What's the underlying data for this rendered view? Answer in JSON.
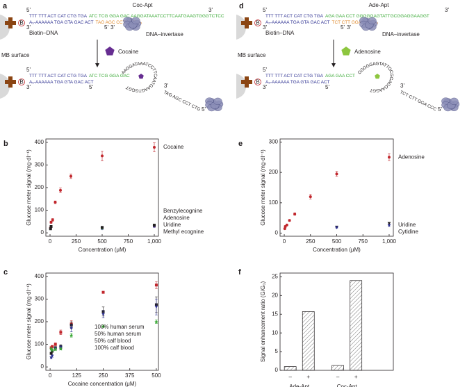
{
  "panel_a": {
    "label": "a",
    "aptamer": "Coc-Apt",
    "top": [
      "TTT TTT ACT CAT CTG TGA",
      "ATC TCG GGA GAC AAGGATAAATCCTTCAATGAAGTGGGTCTCC"
    ],
    "bottom": [
      "A₅-AAAAAA TGA GTA GAC ACT",
      "TAG AGC CCT CTG-A₅"
    ],
    "biotin_mark": "B",
    "biotin": "Biotin–DNA",
    "enzyme": "DNA–invertase",
    "surface": "MB surface",
    "target": "Cocaine",
    "target_color": "#662d91",
    "after_top": "ATC TCG GGA GAC",
    "loop": "AAGGATAAATCCTTCAATGAAGTGGGTCTCC",
    "released": "TAG AGC CCT CTG-A₅",
    "ends": [
      "5'",
      "3'",
      "3'",
      "5'",
      "3'",
      "5'",
      "3'",
      "5'",
      "3'",
      "5'"
    ]
  },
  "panel_d": {
    "label": "d",
    "aptamer": "Ade-Apt",
    "top": [
      "TTT TTT ACT CAT CTG TGA",
      "AGA GAA CCT GGGGGAGTATTGCGGAGGAAGGT"
    ],
    "bottom": [
      "A₅-AAAAAA TGA GTA GAC ACT",
      "TCT CTT GGA CCC-A₅"
    ],
    "biotin_mark": "B",
    "biotin": "Biotin–DNA",
    "enzyme": "DNA–invertase",
    "surface": "MB surface",
    "target": "Adenosine",
    "target_color": "#8dc63f",
    "after_top": "AGA GAA CCT",
    "loop": "GGGGGAGTATTGCGGAGGAAGGT",
    "released": "TCT CTT GGA CCC-A₅",
    "ends": [
      "5'",
      "3'",
      "3'",
      "5'",
      "3'",
      "5'",
      "3'",
      "5'",
      "3'",
      "5'"
    ]
  },
  "chart_data": [
    {
      "type": "scatter",
      "label": "b",
      "xlabel": "Concentration (μM)",
      "ylabel": "Glucose meter signal (mg·dl⁻¹)",
      "xlim": [
        -40,
        1040
      ],
      "xticks": [
        0,
        250,
        500,
        750,
        {
          "value": 1000,
          "label": "1,000"
        }
      ],
      "ylim": [
        -15,
        415
      ],
      "yticks": [
        0,
        100,
        200,
        300,
        400
      ],
      "series": [
        {
          "name": "Cocaine",
          "color": "#c1272d",
          "marker": "circle",
          "x": [
            5,
            10,
            25,
            50,
            100,
            200,
            500,
            1000
          ],
          "values": [
            22,
            47,
            57,
            135,
            188,
            250,
            340,
            378
          ],
          "errors": [
            4,
            5,
            6,
            6,
            10,
            10,
            22,
            20
          ]
        },
        {
          "name": "Benzylecognine",
          "color": "#93278f",
          "marker": "square",
          "x": [
            500,
            1000
          ],
          "values": [
            22,
            30
          ],
          "errors": [
            3,
            3
          ]
        },
        {
          "name": "Adenosine",
          "color": "#2e3192",
          "marker": "triangle",
          "x": [
            500,
            1000
          ],
          "values": [
            18,
            28
          ],
          "errors": [
            3,
            3
          ]
        },
        {
          "name": "Uridine",
          "color": "#39a935",
          "marker": "triangle",
          "x": [
            500,
            1000
          ],
          "values": [
            20,
            32
          ],
          "errors": [
            3,
            3
          ]
        },
        {
          "name": "Methyl ecognine",
          "color": "#231f20",
          "marker": "square",
          "x": [
            5,
            10,
            500,
            1000
          ],
          "values": [
            18,
            28,
            24,
            34
          ],
          "errors": [
            3,
            3,
            3,
            3
          ]
        }
      ]
    },
    {
      "type": "scatter",
      "label": "c",
      "xlabel": "Cocaine concentration (μM)",
      "ylabel": "Glucose meter signal (mg·dl⁻¹)",
      "xlim": [
        -20,
        510
      ],
      "xticks": [
        0,
        125,
        250,
        375,
        500
      ],
      "ylim": [
        -15,
        415
      ],
      "yticks": [
        0,
        100,
        200,
        300,
        400
      ],
      "series": [
        {
          "name": "100% human serum",
          "color": "#c1272d",
          "marker": "square",
          "x": [
            5,
            10,
            25,
            50,
            100,
            250,
            500
          ],
          "values": [
            85,
            90,
            100,
            153,
            190,
            330,
            362
          ],
          "errors": [
            5,
            5,
            6,
            10,
            15,
            3,
            15
          ]
        },
        {
          "name": "50% human serum",
          "color": "#231f20",
          "marker": "square",
          "x": [
            5,
            10,
            25,
            50,
            100,
            250,
            500
          ],
          "values": [
            60,
            70,
            85,
            90,
            185,
            245,
            275
          ],
          "errors": [
            5,
            5,
            5,
            8,
            15,
            20,
            35
          ]
        },
        {
          "name": "50% calf blood",
          "color": "#2e3192",
          "marker": "triangle",
          "x": [
            5,
            10,
            25,
            50,
            100,
            250,
            500
          ],
          "values": [
            40,
            48,
            80,
            85,
            170,
            232,
            265
          ],
          "errors": [
            5,
            5,
            5,
            8,
            15,
            15,
            35
          ]
        },
        {
          "name": "100% calf blood",
          "color": "#39a935",
          "marker": "star",
          "x": [
            5,
            10,
            25,
            50,
            100,
            250,
            500
          ],
          "values": [
            80,
            75,
            78,
            80,
            140,
            180,
            200
          ],
          "errors": [
            5,
            5,
            5,
            5,
            8,
            5,
            8
          ]
        }
      ]
    },
    {
      "type": "scatter",
      "label": "e",
      "xlabel": "Concentration (μM)",
      "ylabel": "Glucose meter signal (mg·dl⁻¹)",
      "xlim": [
        -40,
        1040
      ],
      "xticks": [
        0,
        250,
        500,
        750,
        {
          "value": 1000,
          "label": "1,000"
        }
      ],
      "ylim": [
        -10,
        310
      ],
      "yticks": [
        0,
        100,
        200,
        300
      ],
      "series": [
        {
          "name": "Adenosine",
          "color": "#c1272d",
          "marker": "circle",
          "x": [
            5,
            10,
            25,
            50,
            100,
            250,
            500,
            1000
          ],
          "values": [
            15,
            22,
            27,
            42,
            63,
            120,
            195,
            250
          ],
          "errors": [
            2,
            3,
            3,
            3,
            4,
            8,
            8,
            12
          ]
        },
        {
          "name": "Uridine",
          "color": "#231f20",
          "marker": "triangle",
          "x": [
            500,
            1000
          ],
          "values": [
            20,
            32
          ],
          "errors": [
            2,
            3
          ]
        },
        {
          "name": "Cytidine",
          "color": "#2e3192",
          "marker": "triangle",
          "x": [
            500,
            1000
          ],
          "values": [
            18,
            25
          ],
          "errors": [
            2,
            3
          ]
        }
      ]
    },
    {
      "type": "bar",
      "label": "f",
      "ylabel": "Signal enhancement ratio (G/G₀)",
      "categories": [
        "–",
        "+",
        "–",
        "+"
      ],
      "groups": [
        "Ade-Apt",
        "Coc-Apt"
      ],
      "values": [
        1,
        15.7,
        1.3,
        24
      ],
      "color": "#231f20",
      "ylim": [
        0,
        26
      ],
      "yticks": [
        0,
        5,
        10,
        15,
        20,
        25
      ]
    }
  ]
}
